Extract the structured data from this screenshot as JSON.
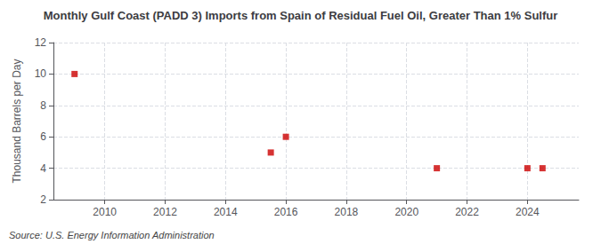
{
  "chart_data": {
    "type": "scatter",
    "title": "Monthly Gulf Coast (PADD 3) Imports from Spain of Residual Fuel Oil, Greater Than 1% Sulfur",
    "ylabel": "Thousand Barrels per Day",
    "source": "Source: U.S. Energy Information Administration",
    "x": [
      2009.0,
      2015.5,
      2016.0,
      2021.0,
      2024.0,
      2024.5
    ],
    "values": [
      10,
      5,
      6,
      4,
      4,
      4
    ],
    "color": "#cc0000",
    "marker": "square",
    "xlim": [
      2008.3,
      2025.7
    ],
    "xticks": [
      2010,
      2012,
      2014,
      2016,
      2018,
      2020,
      2022,
      2024
    ],
    "ylim": [
      2,
      12
    ],
    "yticks": [
      2,
      4,
      6,
      8,
      10,
      12
    ],
    "grid": true
  }
}
